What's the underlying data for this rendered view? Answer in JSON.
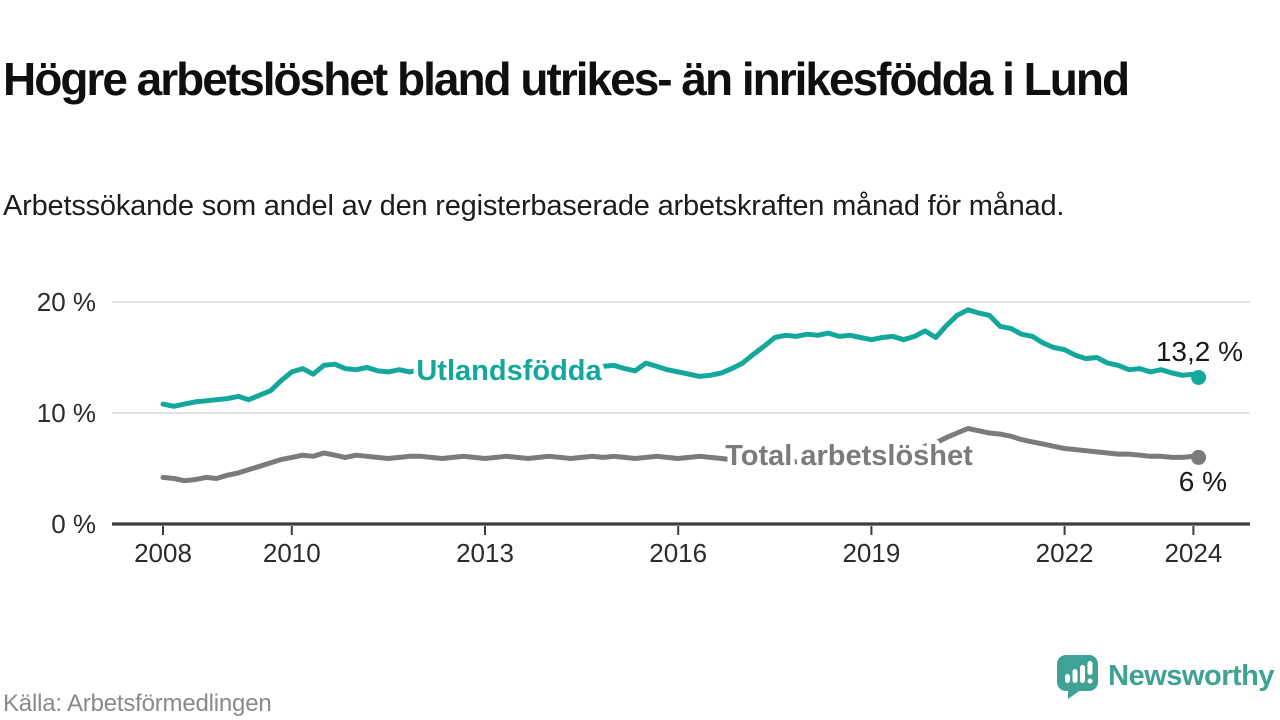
{
  "header": {
    "title": "Högre arbetslöshet bland utrikes- än inrikesfödda i Lund",
    "subtitle": "Arbetssökande som andel av den registerbaserade arbetskraften månad för månad."
  },
  "footer": {
    "source": "Källa: Arbetsförmedlingen",
    "brand": "Newsworthy"
  },
  "colors": {
    "foreign_line": "#14a79b",
    "total_line": "#7b7b7b",
    "end_label_text": "#1a1a1a",
    "grid": "#d9d9d9",
    "axis": "#3d3d3d",
    "tick_label": "#2b2b2b",
    "brand": "#3fa294"
  },
  "chart_data": {
    "type": "line",
    "title": "Högre arbetslöshet bland utrikes- än inrikesfödda i Lund",
    "subtitle": "Arbetssökande som andel av den registerbaserade arbetskraften månad för månad.",
    "source": "Källa: Arbetsförmedlingen",
    "grid": true,
    "legend_position": "inline-on-line",
    "x_axis": {
      "range": [
        2007.2,
        2024.9
      ],
      "ticks": [
        {
          "value": 2008,
          "label": "2008"
        },
        {
          "value": 2010,
          "label": "2010"
        },
        {
          "value": 2013,
          "label": "2013"
        },
        {
          "value": 2016,
          "label": "2016"
        },
        {
          "value": 2019,
          "label": "2019"
        },
        {
          "value": 2022,
          "label": "2022"
        },
        {
          "value": 2024,
          "label": "2024"
        }
      ]
    },
    "y_axis": {
      "unit": "%",
      "range": [
        0,
        22.7
      ],
      "ticks": [
        {
          "value": 0,
          "label": "0 %"
        },
        {
          "value": 10,
          "label": "10 %"
        },
        {
          "value": 20,
          "label": "20 %"
        }
      ]
    },
    "series": [
      {
        "id": "utlandsfodda",
        "name": "Utlandsfödda",
        "color": "#14a79b",
        "end_label": "13,2 %",
        "end_value": 13.2,
        "points": [
          [
            2008.0,
            10.8
          ],
          [
            2008.17,
            10.6
          ],
          [
            2008.33,
            10.8
          ],
          [
            2008.5,
            11.0
          ],
          [
            2008.67,
            11.1
          ],
          [
            2008.83,
            11.2
          ],
          [
            2009.0,
            11.3
          ],
          [
            2009.17,
            11.5
          ],
          [
            2009.33,
            11.2
          ],
          [
            2009.5,
            11.6
          ],
          [
            2009.67,
            12.0
          ],
          [
            2009.83,
            12.9
          ],
          [
            2010.0,
            13.7
          ],
          [
            2010.17,
            14.0
          ],
          [
            2010.33,
            13.5
          ],
          [
            2010.5,
            14.3
          ],
          [
            2010.67,
            14.4
          ],
          [
            2010.83,
            14.0
          ],
          [
            2011.0,
            13.9
          ],
          [
            2011.17,
            14.1
          ],
          [
            2011.33,
            13.8
          ],
          [
            2011.5,
            13.7
          ],
          [
            2011.67,
            13.9
          ],
          [
            2011.83,
            13.7
          ],
          [
            2012.0,
            13.9
          ],
          [
            2012.17,
            14.0
          ],
          [
            2012.33,
            13.9
          ],
          [
            2012.5,
            13.8
          ],
          [
            2012.67,
            14.0
          ],
          [
            2012.83,
            13.9
          ],
          [
            2013.0,
            13.8
          ],
          [
            2013.17,
            13.9
          ],
          [
            2013.33,
            14.0
          ],
          [
            2013.5,
            14.1
          ],
          [
            2013.67,
            14.0
          ],
          [
            2013.83,
            13.9
          ],
          [
            2014.0,
            14.0
          ],
          [
            2014.17,
            14.1
          ],
          [
            2014.33,
            14.0
          ],
          [
            2014.5,
            13.9
          ],
          [
            2014.67,
            14.0
          ],
          [
            2014.83,
            14.2
          ],
          [
            2015.0,
            14.3
          ],
          [
            2015.17,
            14.0
          ],
          [
            2015.33,
            13.8
          ],
          [
            2015.5,
            14.5
          ],
          [
            2015.67,
            14.2
          ],
          [
            2015.83,
            13.9
          ],
          [
            2016.0,
            13.7
          ],
          [
            2016.17,
            13.5
          ],
          [
            2016.33,
            13.3
          ],
          [
            2016.5,
            13.4
          ],
          [
            2016.67,
            13.6
          ],
          [
            2016.83,
            14.0
          ],
          [
            2017.0,
            14.5
          ],
          [
            2017.17,
            15.3
          ],
          [
            2017.33,
            16.0
          ],
          [
            2017.5,
            16.8
          ],
          [
            2017.67,
            17.0
          ],
          [
            2017.83,
            16.9
          ],
          [
            2018.0,
            17.1
          ],
          [
            2018.17,
            17.0
          ],
          [
            2018.33,
            17.2
          ],
          [
            2018.5,
            16.9
          ],
          [
            2018.67,
            17.0
          ],
          [
            2018.83,
            16.8
          ],
          [
            2019.0,
            16.6
          ],
          [
            2019.17,
            16.8
          ],
          [
            2019.33,
            16.9
          ],
          [
            2019.5,
            16.6
          ],
          [
            2019.67,
            16.9
          ],
          [
            2019.83,
            17.4
          ],
          [
            2020.0,
            16.8
          ],
          [
            2020.17,
            17.9
          ],
          [
            2020.33,
            18.8
          ],
          [
            2020.5,
            19.3
          ],
          [
            2020.67,
            19.0
          ],
          [
            2020.83,
            18.8
          ],
          [
            2021.0,
            17.8
          ],
          [
            2021.17,
            17.6
          ],
          [
            2021.33,
            17.1
          ],
          [
            2021.5,
            16.9
          ],
          [
            2021.67,
            16.3
          ],
          [
            2021.83,
            15.9
          ],
          [
            2022.0,
            15.7
          ],
          [
            2022.17,
            15.2
          ],
          [
            2022.33,
            14.9
          ],
          [
            2022.5,
            15.0
          ],
          [
            2022.67,
            14.5
          ],
          [
            2022.83,
            14.3
          ],
          [
            2023.0,
            13.9
          ],
          [
            2023.17,
            14.0
          ],
          [
            2023.33,
            13.7
          ],
          [
            2023.5,
            13.9
          ],
          [
            2023.67,
            13.6
          ],
          [
            2023.83,
            13.4
          ],
          [
            2024.0,
            13.5
          ],
          [
            2024.08,
            13.2
          ]
        ]
      },
      {
        "id": "total-arbetsloshet",
        "name": "Total arbetslöshet",
        "color": "#7b7b7b",
        "end_label": "6 %",
        "end_value": 6.0,
        "points": [
          [
            2008.0,
            4.2
          ],
          [
            2008.17,
            4.1
          ],
          [
            2008.33,
            3.9
          ],
          [
            2008.5,
            4.0
          ],
          [
            2008.67,
            4.2
          ],
          [
            2008.83,
            4.1
          ],
          [
            2009.0,
            4.4
          ],
          [
            2009.17,
            4.6
          ],
          [
            2009.33,
            4.9
          ],
          [
            2009.5,
            5.2
          ],
          [
            2009.67,
            5.5
          ],
          [
            2009.83,
            5.8
          ],
          [
            2010.0,
            6.0
          ],
          [
            2010.17,
            6.2
          ],
          [
            2010.33,
            6.1
          ],
          [
            2010.5,
            6.4
          ],
          [
            2010.67,
            6.2
          ],
          [
            2010.83,
            6.0
          ],
          [
            2011.0,
            6.2
          ],
          [
            2011.17,
            6.1
          ],
          [
            2011.33,
            6.0
          ],
          [
            2011.5,
            5.9
          ],
          [
            2011.67,
            6.0
          ],
          [
            2011.83,
            6.1
          ],
          [
            2012.0,
            6.1
          ],
          [
            2012.17,
            6.0
          ],
          [
            2012.33,
            5.9
          ],
          [
            2012.5,
            6.0
          ],
          [
            2012.67,
            6.1
          ],
          [
            2012.83,
            6.0
          ],
          [
            2013.0,
            5.9
          ],
          [
            2013.17,
            6.0
          ],
          [
            2013.33,
            6.1
          ],
          [
            2013.5,
            6.0
          ],
          [
            2013.67,
            5.9
          ],
          [
            2013.83,
            6.0
          ],
          [
            2014.0,
            6.1
          ],
          [
            2014.17,
            6.0
          ],
          [
            2014.33,
            5.9
          ],
          [
            2014.5,
            6.0
          ],
          [
            2014.67,
            6.1
          ],
          [
            2014.83,
            6.0
          ],
          [
            2015.0,
            6.1
          ],
          [
            2015.17,
            6.0
          ],
          [
            2015.33,
            5.9
          ],
          [
            2015.5,
            6.0
          ],
          [
            2015.67,
            6.1
          ],
          [
            2015.83,
            6.0
          ],
          [
            2016.0,
            5.9
          ],
          [
            2016.17,
            6.0
          ],
          [
            2016.33,
            6.1
          ],
          [
            2016.5,
            6.0
          ],
          [
            2016.67,
            5.9
          ],
          [
            2016.83,
            5.8
          ],
          [
            2017.0,
            5.7
          ],
          [
            2017.17,
            5.6
          ],
          [
            2017.33,
            5.7
          ],
          [
            2017.5,
            5.8
          ],
          [
            2017.67,
            5.7
          ],
          [
            2017.83,
            5.6
          ],
          [
            2018.0,
            5.6
          ],
          [
            2018.17,
            5.7
          ],
          [
            2018.33,
            5.8
          ],
          [
            2018.5,
            5.7
          ],
          [
            2018.67,
            5.8
          ],
          [
            2018.83,
            5.9
          ],
          [
            2019.0,
            6.0
          ],
          [
            2019.17,
            6.1
          ],
          [
            2019.33,
            6.2
          ],
          [
            2019.5,
            6.3
          ],
          [
            2019.67,
            6.5
          ],
          [
            2019.83,
            7.0
          ],
          [
            2020.0,
            7.3
          ],
          [
            2020.17,
            7.8
          ],
          [
            2020.33,
            8.2
          ],
          [
            2020.5,
            8.6
          ],
          [
            2020.67,
            8.4
          ],
          [
            2020.83,
            8.2
          ],
          [
            2021.0,
            8.1
          ],
          [
            2021.17,
            7.9
          ],
          [
            2021.33,
            7.6
          ],
          [
            2021.5,
            7.4
          ],
          [
            2021.67,
            7.2
          ],
          [
            2021.83,
            7.0
          ],
          [
            2022.0,
            6.8
          ],
          [
            2022.17,
            6.7
          ],
          [
            2022.33,
            6.6
          ],
          [
            2022.5,
            6.5
          ],
          [
            2022.67,
            6.4
          ],
          [
            2022.83,
            6.3
          ],
          [
            2023.0,
            6.3
          ],
          [
            2023.17,
            6.2
          ],
          [
            2023.33,
            6.1
          ],
          [
            2023.5,
            6.1
          ],
          [
            2023.67,
            6.0
          ],
          [
            2023.83,
            6.0
          ],
          [
            2024.0,
            6.1
          ],
          [
            2024.08,
            6.0
          ]
        ]
      }
    ]
  }
}
